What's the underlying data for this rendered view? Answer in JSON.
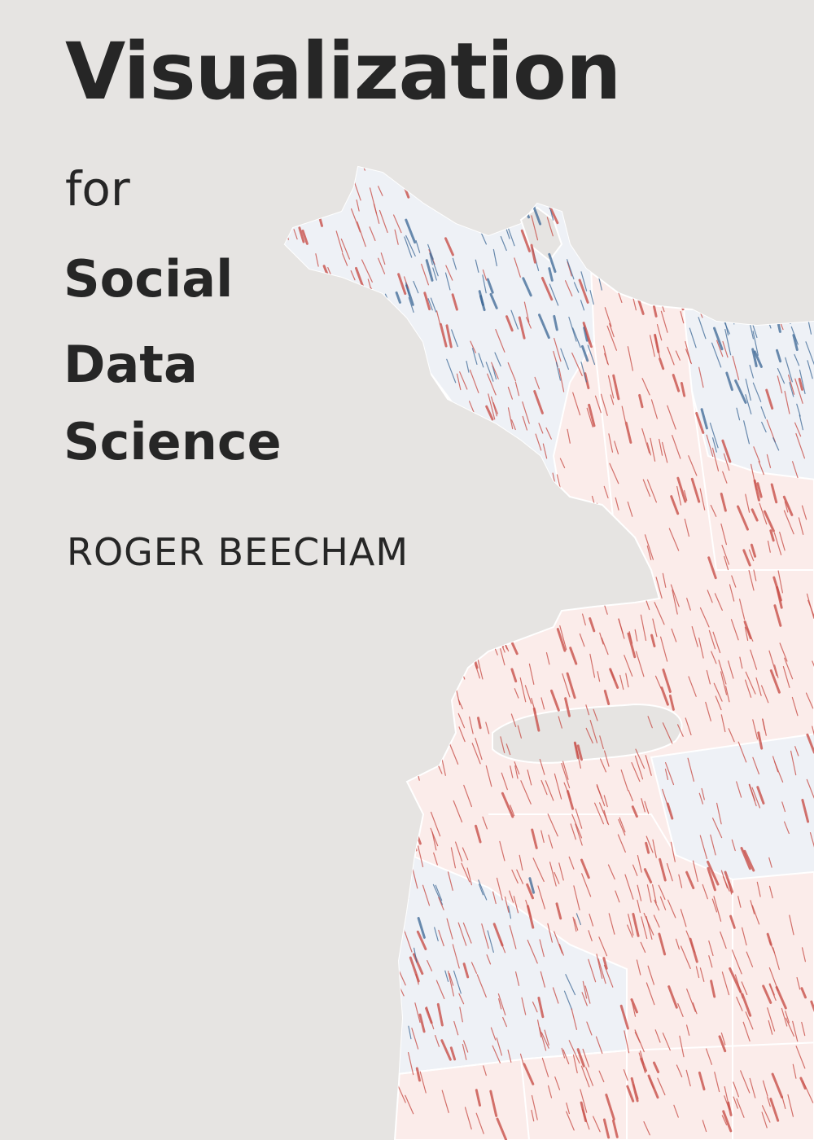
{
  "cover": {
    "title": "Visualization",
    "connector": "for",
    "subtitle_lines": [
      "Social",
      "Data",
      "Science"
    ],
    "author": "ROGER BEECHAM"
  },
  "colors": {
    "background": "#e6e4e2",
    "text": "#262626",
    "region_blue": "#eef1f6",
    "region_red": "#fbecea",
    "mark_red": "#c9504a",
    "mark_blue": "#3a6694",
    "border": "#ffffff"
  }
}
